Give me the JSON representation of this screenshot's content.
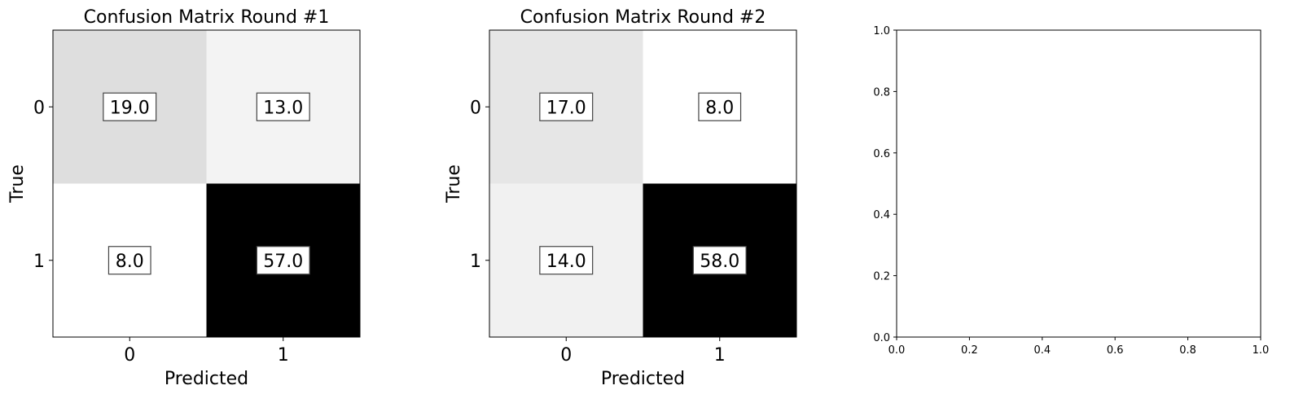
{
  "chart_data": [
    {
      "type": "heatmap",
      "title": "Confusion Matrix Round #1",
      "xlabel": "Predicted",
      "ylabel": "True",
      "x_categories": [
        "0",
        "1"
      ],
      "y_categories": [
        "0",
        "1"
      ],
      "values": [
        [
          19.0,
          13.0
        ],
        [
          8.0,
          57.0
        ]
      ],
      "value_labels": [
        [
          "19.0",
          "13.0"
        ],
        [
          "8.0",
          "57.0"
        ]
      ],
      "colormap": "Greys"
    },
    {
      "type": "heatmap",
      "title": "Confusion Matrix Round #2",
      "xlabel": "Predicted",
      "ylabel": "True",
      "x_categories": [
        "0",
        "1"
      ],
      "y_categories": [
        "0",
        "1"
      ],
      "values": [
        [
          17.0,
          8.0
        ],
        [
          14.0,
          58.0
        ]
      ],
      "value_labels": [
        [
          "17.0",
          "8.0"
        ],
        [
          "14.0",
          "58.0"
        ]
      ],
      "colormap": "Greys"
    },
    {
      "type": "scatter",
      "title": "",
      "xlabel": "",
      "ylabel": "",
      "xlim": [
        0.0,
        1.0
      ],
      "ylim": [
        0.0,
        1.0
      ],
      "x_ticks": [
        "0.0",
        "0.2",
        "0.4",
        "0.6",
        "0.8",
        "1.0"
      ],
      "y_ticks": [
        "0.0",
        "0.2",
        "0.4",
        "0.6",
        "0.8",
        "1.0"
      ],
      "series": []
    }
  ]
}
